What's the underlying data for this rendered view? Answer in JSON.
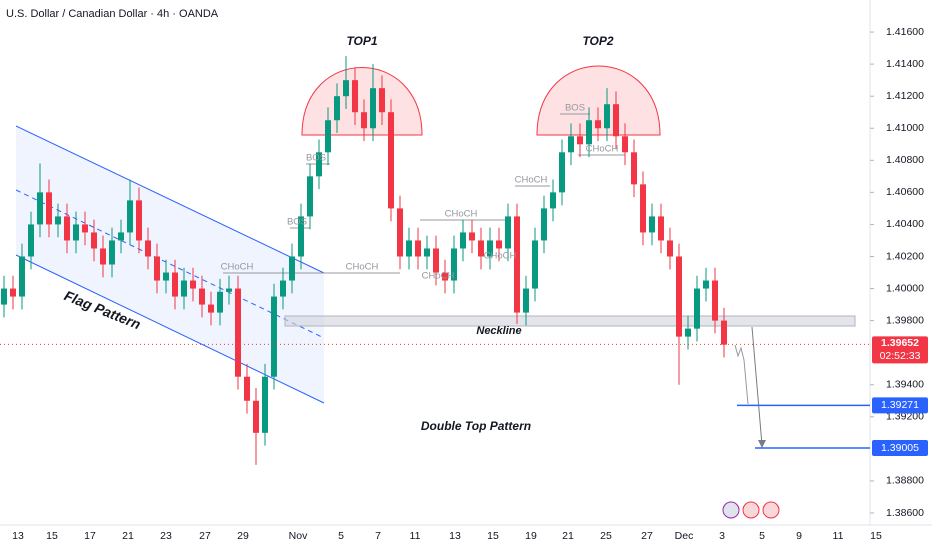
{
  "chart_data": {
    "type": "candlestick",
    "title": "U.S. Dollar / Canadian Dollar · 4h · OANDA",
    "open": [
      1.399,
      1.4,
      1.3995,
      1.402,
      1.404,
      1.406,
      1.404,
      1.4045,
      1.403,
      1.404,
      1.4035,
      1.4025,
      1.4015,
      1.403,
      1.4035,
      1.4055,
      1.403,
      1.402,
      1.4005,
      1.401,
      1.3995,
      1.4005,
      1.4,
      1.399,
      1.3985,
      1.3998,
      1.4,
      1.3945,
      1.393,
      1.391,
      1.3945,
      1.3995,
      1.4005,
      1.402,
      1.4045,
      1.407,
      1.4085,
      1.4105,
      1.412,
      1.413,
      1.411,
      1.41,
      1.4125,
      1.411,
      1.405,
      1.402,
      1.403,
      1.402,
      1.4025,
      1.401,
      1.4005,
      1.4025,
      1.4035,
      1.403,
      1.402,
      1.403,
      1.4025,
      1.4045,
      1.3985,
      1.4,
      1.403,
      1.405,
      1.406,
      1.4085,
      1.4095,
      1.409,
      1.4105,
      1.41,
      1.4115,
      1.4095,
      1.4085,
      1.4065,
      1.4035,
      1.4045,
      1.403,
      1.402,
      1.397,
      1.3975,
      1.4,
      1.4005,
      1.398
    ],
    "high": [
      1.4008,
      1.4008,
      1.4028,
      1.4048,
      1.4078,
      1.4068,
      1.4053,
      1.4053,
      1.4048,
      1.4048,
      1.4043,
      1.4033,
      1.4038,
      1.4043,
      1.4068,
      1.4063,
      1.4038,
      1.4028,
      1.4018,
      1.4018,
      1.4013,
      1.4013,
      1.4008,
      1.3998,
      1.4006,
      1.4008,
      1.4008,
      1.3953,
      1.3938,
      1.3953,
      1.4003,
      1.4013,
      1.4028,
      1.4053,
      1.4078,
      1.4093,
      1.4113,
      1.4128,
      1.4145,
      1.4138,
      1.4118,
      1.414,
      1.4133,
      1.4118,
      1.4058,
      1.4038,
      1.4038,
      1.4033,
      1.4033,
      1.4018,
      1.4033,
      1.4043,
      1.4043,
      1.4038,
      1.4038,
      1.4038,
      1.4053,
      1.4053,
      1.4008,
      1.4038,
      1.4058,
      1.4068,
      1.4093,
      1.4103,
      1.4103,
      1.4113,
      1.4113,
      1.4125,
      1.4123,
      1.4103,
      1.4093,
      1.4073,
      1.4053,
      1.4053,
      1.4038,
      1.4028,
      1.3983,
      1.4008,
      1.4013,
      1.4013,
      1.3988
    ],
    "low": [
      1.3982,
      1.3987,
      1.3987,
      1.4012,
      1.4032,
      1.4032,
      1.4032,
      1.4022,
      1.4022,
      1.4027,
      1.4017,
      1.4007,
      1.4007,
      1.4022,
      1.4027,
      1.4022,
      1.4012,
      1.3997,
      1.3997,
      1.3987,
      1.3987,
      1.3992,
      1.3982,
      1.3977,
      1.3977,
      1.399,
      1.3937,
      1.3922,
      1.389,
      1.3902,
      1.3937,
      1.3987,
      1.3997,
      1.4012,
      1.4037,
      1.4062,
      1.4077,
      1.4097,
      1.4112,
      1.4102,
      1.4092,
      1.4092,
      1.4102,
      1.4042,
      1.4012,
      1.4012,
      1.4012,
      1.4012,
      1.4002,
      1.3997,
      1.3997,
      1.4017,
      1.4022,
      1.4012,
      1.4012,
      1.4017,
      1.4017,
      1.3978,
      1.3977,
      1.3992,
      1.4022,
      1.4042,
      1.4052,
      1.4077,
      1.4082,
      1.4082,
      1.4092,
      1.4092,
      1.4087,
      1.4077,
      1.4057,
      1.4027,
      1.4027,
      1.4022,
      1.4012,
      1.394,
      1.3962,
      1.3967,
      1.3992,
      1.3972,
      1.3957
    ],
    "close": [
      1.4,
      1.3995,
      1.402,
      1.404,
      1.406,
      1.404,
      1.4045,
      1.403,
      1.404,
      1.4035,
      1.4025,
      1.4015,
      1.403,
      1.4035,
      1.4055,
      1.403,
      1.402,
      1.4005,
      1.401,
      1.3995,
      1.4005,
      1.4,
      1.399,
      1.3985,
      1.3998,
      1.4,
      1.3945,
      1.393,
      1.391,
      1.3945,
      1.3995,
      1.4005,
      1.402,
      1.4045,
      1.407,
      1.4085,
      1.4105,
      1.412,
      1.413,
      1.411,
      1.41,
      1.4125,
      1.411,
      1.405,
      1.402,
      1.403,
      1.402,
      1.4025,
      1.401,
      1.4005,
      1.4025,
      1.4035,
      1.403,
      1.402,
      1.403,
      1.4025,
      1.4045,
      1.3985,
      1.4,
      1.403,
      1.405,
      1.406,
      1.4085,
      1.4095,
      1.409,
      1.4105,
      1.41,
      1.4115,
      1.4095,
      1.4085,
      1.4065,
      1.4035,
      1.4045,
      1.403,
      1.402,
      1.397,
      1.3975,
      1.4,
      1.4005,
      1.398,
      1.3965
    ],
    "up_color": "#089981",
    "down_color": "#f23645",
    "ylim": [
      1.38525,
      1.418
    ],
    "yticks": [
      {
        "value": 1.416,
        "label": "1.41600"
      },
      {
        "value": 1.414,
        "label": "1.41400"
      },
      {
        "value": 1.412,
        "label": "1.41200"
      },
      {
        "value": 1.41,
        "label": "1.41000"
      },
      {
        "value": 1.408,
        "label": "1.40800"
      },
      {
        "value": 1.406,
        "label": "1.40600"
      },
      {
        "value": 1.404,
        "label": "1.40400"
      },
      {
        "value": 1.402,
        "label": "1.40200"
      },
      {
        "value": 1.4,
        "label": "1.40000"
      },
      {
        "value": 1.398,
        "label": "1.39800"
      },
      {
        "value": 1.394,
        "label": "1.39400"
      },
      {
        "value": 1.392,
        "label": "1.39200"
      },
      {
        "value": 1.388,
        "label": "1.38800"
      },
      {
        "value": 1.386,
        "label": "1.38600"
      }
    ],
    "x_labels": [
      "13",
      "15",
      "17",
      "21",
      "23",
      "27",
      "29",
      "Nov",
      "5",
      "7",
      "11",
      "13",
      "15",
      "19",
      "21",
      "25",
      "27",
      "Dec",
      "3",
      "5",
      "9",
      "11",
      "15"
    ],
    "last_price": {
      "value": 1.39652,
      "label": "1.39652"
    },
    "countdown": "02:52:33",
    "levels": [
      {
        "value": 1.39271,
        "label": "1.39271"
      },
      {
        "value": 1.39005,
        "label": "1.39005"
      }
    ],
    "annotations": [
      "TOP1",
      "TOP2",
      "Flag Pattern",
      "Neckline",
      "Double Top Pattern"
    ],
    "structure_labels": [
      "CHoCH",
      "BOS",
      "BOS",
      "CHoCH",
      "CHoCH",
      "CHoCH",
      "CHoCH",
      "CHoCH",
      "BOS",
      "CHoCH"
    ]
  }
}
